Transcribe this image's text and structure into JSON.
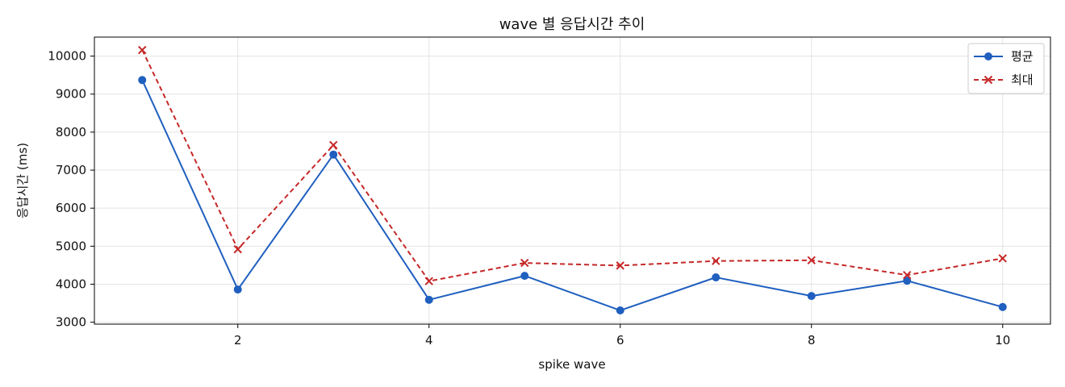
{
  "chart_data": {
    "type": "line",
    "title": "wave 별 응답시간 추이",
    "xlabel": "spike wave",
    "ylabel": "응답시간 (ms)",
    "xlim": [
      0.5,
      10.5
    ],
    "ylim": [
      2950,
      10500
    ],
    "x_ticks": [
      2,
      4,
      6,
      8,
      10
    ],
    "y_ticks": [
      3000,
      4000,
      5000,
      6000,
      7000,
      8000,
      9000,
      10000
    ],
    "grid": true,
    "legend_position": "top-right",
    "x": [
      1,
      2,
      3,
      4,
      5,
      6,
      7,
      8,
      9,
      10
    ],
    "series": [
      {
        "name": "평균",
        "values": [
          9370,
          3860,
          7410,
          3590,
          4220,
          3310,
          4180,
          3690,
          4090,
          3400
        ],
        "color": "#1f5fbf",
        "marker": "circle",
        "line_style": "solid"
      },
      {
        "name": "최대",
        "values": [
          10160,
          4920,
          7660,
          4080,
          4560,
          4490,
          4610,
          4630,
          4240,
          4680
        ],
        "color": "#c62828",
        "marker": "x",
        "line_style": "dashed"
      }
    ]
  }
}
